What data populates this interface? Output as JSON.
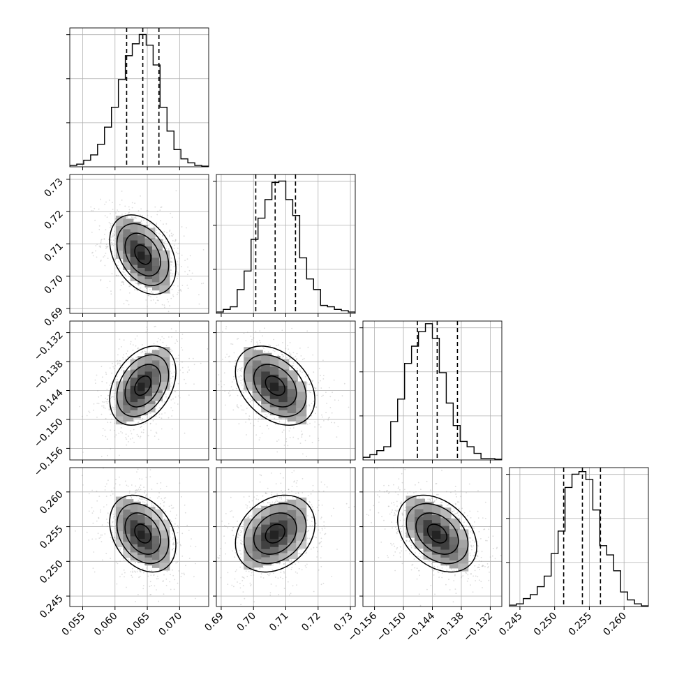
{
  "chart_data": {
    "type": "corner",
    "description_of_panels": "4x4 lower-triangular corner plot: 1D histograms on diagonal, 2D density contours below",
    "grid": true,
    "parameters": [
      {
        "range": [
          0.053,
          0.0745
        ],
        "ticks": [
          "0.055",
          "0.060",
          "0.065",
          "0.070"
        ],
        "tick_values": [
          0.055,
          0.06,
          0.065,
          0.07
        ],
        "quantiles": [
          0.0618,
          0.0643,
          0.0668
        ],
        "mean": 0.0643,
        "std": 0.0025,
        "hist": [
          0.01,
          0.02,
          0.05,
          0.09,
          0.17,
          0.3,
          0.45,
          0.66,
          0.84,
          0.93,
          1.0,
          0.92,
          0.77,
          0.45,
          0.27,
          0.13,
          0.06,
          0.03,
          0.01,
          0.005
        ]
      },
      {
        "range": [
          0.6885,
          0.7315
        ],
        "ticks": [
          "0.69",
          "0.70",
          "0.71",
          "0.72",
          "0.73"
        ],
        "tick_values": [
          0.69,
          0.7,
          0.71,
          0.72,
          0.73
        ],
        "quantiles": [
          0.7007,
          0.7067,
          0.713
        ],
        "mean": 0.7067,
        "std": 0.006,
        "hist": [
          0.01,
          0.03,
          0.05,
          0.18,
          0.32,
          0.56,
          0.72,
          0.86,
          0.99,
          1.0,
          0.86,
          0.74,
          0.42,
          0.26,
          0.18,
          0.06,
          0.05,
          0.03,
          0.02,
          0.01
        ]
      },
      {
        "range": [
          -0.1584,
          -0.1296
        ],
        "ticks": [
          "−0.156",
          "−0.150",
          "−0.144",
          "−0.138",
          "−0.132"
        ],
        "tick_values": [
          -0.156,
          -0.15,
          -0.144,
          -0.138,
          -0.132
        ],
        "quantiles": [
          -0.1471,
          -0.143,
          -0.1388
        ],
        "mean": -0.143,
        "std": 0.004,
        "hist": [
          0.02,
          0.04,
          0.07,
          0.1,
          0.29,
          0.46,
          0.73,
          0.86,
          0.97,
          1.03,
          0.92,
          0.66,
          0.43,
          0.26,
          0.14,
          0.1,
          0.05,
          0.01,
          0.01,
          0.005
        ]
      },
      {
        "range": [
          0.2435,
          0.2635
        ],
        "ticks": [
          "0.245",
          "0.250",
          "0.255",
          "0.260"
        ],
        "tick_values": [
          0.245,
          0.25,
          0.255,
          0.26
        ],
        "quantiles": [
          0.2513,
          0.254,
          0.2566
        ],
        "mean": 0.254,
        "std": 0.0027,
        "hist": [
          0.01,
          0.02,
          0.06,
          0.09,
          0.15,
          0.23,
          0.4,
          0.57,
          0.9,
          1.0,
          1.02,
          0.96,
          0.73,
          0.46,
          0.39,
          0.27,
          0.11,
          0.05,
          0.02,
          0.005
        ]
      }
    ],
    "correlations": {
      "1-0": -0.35,
      "2-0": 0.35,
      "2-1": -0.35,
      "3-0": -0.3,
      "3-1": 0.25,
      "3-2": -0.35
    }
  }
}
